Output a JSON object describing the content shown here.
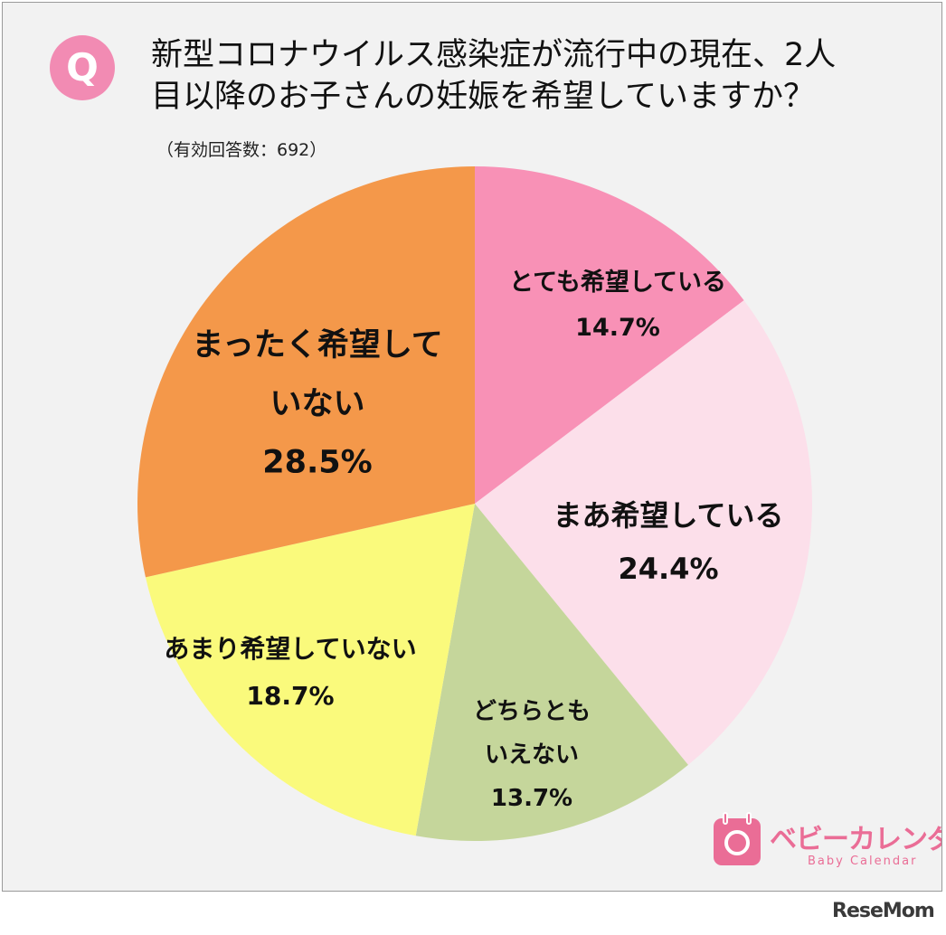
{
  "header": {
    "badge": "Q",
    "title_line_1": "新型コロナウイルス感染症が流行中の現在、2人",
    "title_line_2": "目以降のお子さんの妊娠を希望していますか？",
    "subtitle": "（有効回答数：692）"
  },
  "chart_data": {
    "type": "pie",
    "title": "新型コロナウイルス感染症が流行中の現在、2人目以降のお子さんの妊娠を希望していますか？",
    "subtitle": "（有効回答数：692）",
    "start": "12 o'clock",
    "direction": "clockwise",
    "slices": [
      {
        "label_lines": [
          "とても希望している"
        ],
        "value": 14.7,
        "value_text": "14.7%",
        "color": "#f891b6"
      },
      {
        "label_lines": [
          "まあ希望している"
        ],
        "value": 24.4,
        "value_text": "24.4%",
        "color": "#fcdfea"
      },
      {
        "label_lines": [
          "どちらとも",
          "いえない"
        ],
        "value": 13.7,
        "value_text": "13.7%",
        "color": "#c5d69b"
      },
      {
        "label_lines": [
          "あまり希望していない"
        ],
        "value": 18.7,
        "value_text": "18.7%",
        "color": "#fafa7c"
      },
      {
        "label_lines": [
          "まったく希望して",
          "いない"
        ],
        "value": 28.5,
        "value_text": "28.5%",
        "color": "#f4984a"
      }
    ]
  },
  "logo": {
    "name_jp": "ベビーカレンダー",
    "name_en": "Baby Calendar"
  },
  "watermark": "ReseMom"
}
